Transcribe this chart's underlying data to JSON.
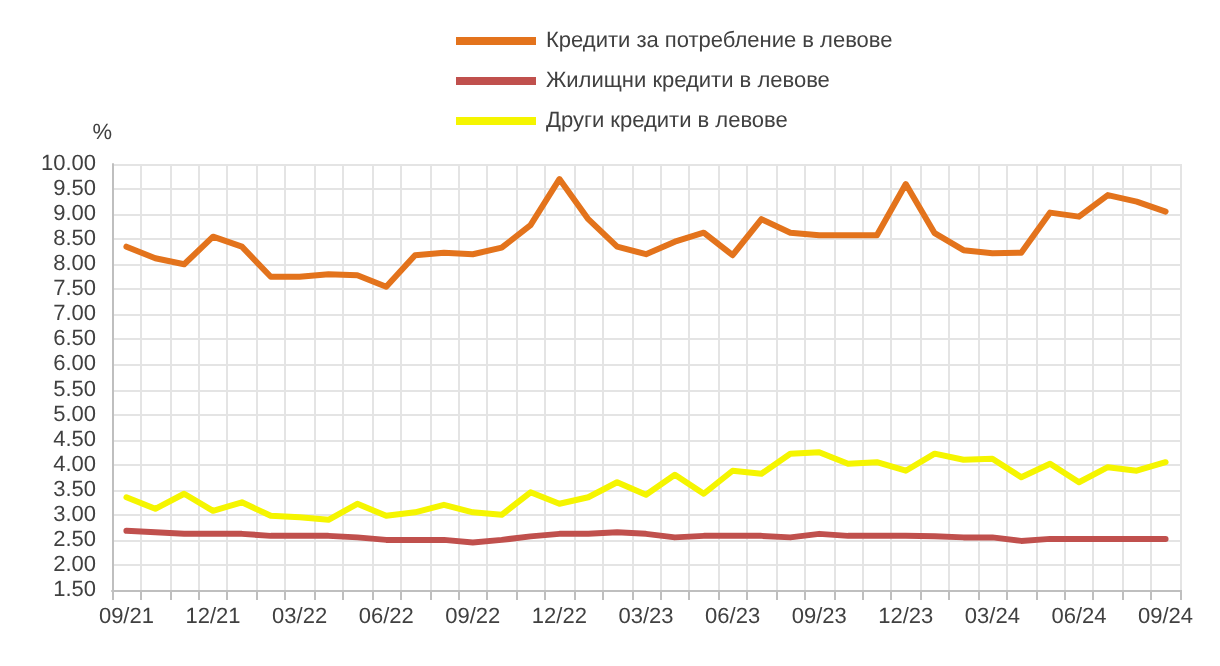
{
  "chart_data": {
    "type": "line",
    "ylabel": "%",
    "categories": [
      "09/21",
      null,
      null,
      "12/21",
      null,
      null,
      "03/22",
      null,
      null,
      "06/22",
      null,
      null,
      "09/22",
      null,
      null,
      "12/22",
      null,
      null,
      "03/23",
      null,
      null,
      "06/23",
      null,
      null,
      "09/23",
      null,
      null,
      "12/23",
      null,
      null,
      "03/24",
      null,
      null,
      "06/24",
      null,
      null,
      "09/24"
    ],
    "series": [
      {
        "name": "Кредити за потребление в левове",
        "color": "#e3731c",
        "values": [
          8.35,
          8.12,
          8.0,
          8.55,
          8.35,
          7.75,
          7.75,
          7.8,
          7.78,
          7.55,
          8.18,
          8.23,
          8.2,
          8.33,
          8.78,
          9.7,
          8.9,
          8.35,
          8.2,
          8.45,
          8.63,
          8.18,
          8.9,
          8.63,
          8.58,
          8.58,
          8.58,
          9.6,
          8.62,
          8.28,
          8.22,
          8.23,
          9.03,
          8.95,
          9.38,
          9.25,
          9.05
        ]
      },
      {
        "name": "Жилищни кредити в левове",
        "color": "#c0504d",
        "values": [
          2.68,
          2.65,
          2.62,
          2.62,
          2.62,
          2.58,
          2.58,
          2.58,
          2.55,
          2.5,
          2.5,
          2.5,
          2.45,
          2.5,
          2.57,
          2.62,
          2.62,
          2.65,
          2.62,
          2.55,
          2.58,
          2.58,
          2.58,
          2.55,
          2.62,
          2.58,
          2.58,
          2.58,
          2.57,
          2.55,
          2.55,
          2.48,
          2.52,
          2.52,
          2.52,
          2.52,
          2.52
        ]
      },
      {
        "name": "Други кредити в левове",
        "color": "#f5f500",
        "values": [
          3.35,
          3.12,
          3.42,
          3.08,
          3.25,
          2.98,
          2.95,
          2.9,
          3.22,
          2.98,
          3.05,
          3.2,
          3.05,
          3.0,
          3.45,
          3.22,
          3.35,
          3.65,
          3.4,
          3.8,
          3.42,
          3.88,
          3.82,
          4.22,
          4.25,
          4.02,
          4.05,
          3.88,
          4.22,
          4.1,
          4.12,
          3.75,
          4.02,
          3.65,
          3.95,
          3.88,
          4.05
        ]
      }
    ],
    "ylim": [
      1.5,
      10
    ],
    "yticks": [
      {
        "value": 1.5,
        "label": "1.50"
      },
      {
        "value": 2,
        "label": "2.00"
      },
      {
        "value": 2.5,
        "label": "2.50"
      },
      {
        "value": 3,
        "label": "3.00"
      },
      {
        "value": 3.5,
        "label": "3.50"
      },
      {
        "value": 4,
        "label": "4.00"
      },
      {
        "value": 4.5,
        "label": "4.50"
      },
      {
        "value": 5,
        "label": "5.00"
      },
      {
        "value": 5.5,
        "label": "5.50"
      },
      {
        "value": 6,
        "label": "6.00"
      },
      {
        "value": 6.5,
        "label": "6.50"
      },
      {
        "value": 7,
        "label": "7.00"
      },
      {
        "value": 7.5,
        "label": "7.50"
      },
      {
        "value": 8,
        "label": "8.00"
      },
      {
        "value": 8.5,
        "label": "8.50"
      },
      {
        "value": 9,
        "label": "9.00"
      },
      {
        "value": 9.5,
        "label": "9.50"
      },
      {
        "value": 10,
        "label": "10.00"
      }
    ],
    "grid": true,
    "legend": "top",
    "marker": "none",
    "line_style": "solid"
  }
}
